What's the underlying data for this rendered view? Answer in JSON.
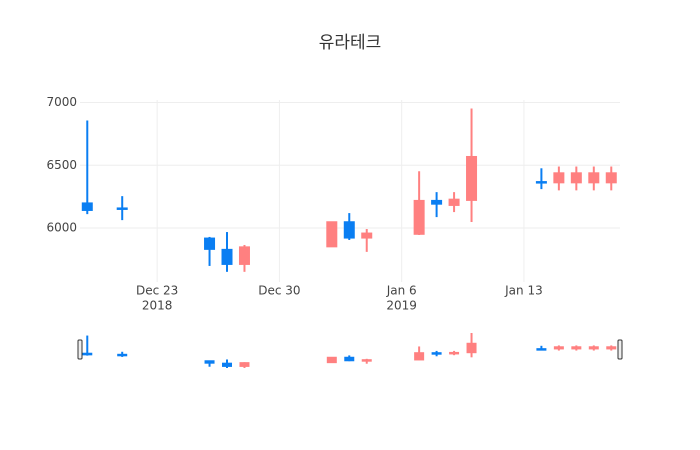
{
  "chart_data": {
    "type": "candlestick",
    "title": "유라테크",
    "x": [
      "2018-12-19",
      "2018-12-21",
      "2018-12-26",
      "2018-12-27",
      "2018-12-28",
      "2019-01-02",
      "2019-01-03",
      "2019-01-04",
      "2019-01-07",
      "2019-01-08",
      "2019-01-09",
      "2019-01-10",
      "2019-01-14",
      "2019-01-15",
      "2019-01-16",
      "2019-01-17",
      "2019-01-18"
    ],
    "open": [
      6200,
      6160,
      5920,
      5830,
      5710,
      5850,
      6050,
      5920,
      5950,
      6220,
      6180,
      6220,
      6370,
      6360,
      6360,
      6360,
      6360
    ],
    "high": [
      6857,
      6254,
      5929,
      5968,
      5865,
      6050,
      6119,
      5992,
      6452,
      6286,
      6286,
      6952,
      6476,
      6490,
      6490,
      6490,
      6490
    ],
    "low": [
      6111,
      6063,
      5698,
      5651,
      5651,
      5850,
      5905,
      5810,
      5944,
      6087,
      6127,
      6048,
      6310,
      6300,
      6300,
      6300,
      6300
    ],
    "close": [
      6140,
      6150,
      5830,
      5710,
      5850,
      6050,
      5920,
      5960,
      6220,
      6190,
      6230,
      6570,
      6360,
      6440,
      6440,
      6440,
      6440
    ],
    "increasing_color": "#ff8080",
    "decreasing_color": "#0a7ef2",
    "xlim": [
      "2018-12-18T14:00",
      "2019-01-18T12:00"
    ],
    "xticks": [
      {
        "value": "2018-12-23",
        "label": "Dec 23",
        "sublabel": "2018"
      },
      {
        "value": "2018-12-30",
        "label": "Dec 30"
      },
      {
        "value": "2019-01-06",
        "label": "Jan 6",
        "sublabel": "2019"
      },
      {
        "value": "2019-01-13",
        "label": "Jan 13"
      }
    ],
    "ylim": [
      5570,
      7020
    ],
    "yticks": [
      6000,
      6500,
      7000
    ],
    "grid": true,
    "rangeslider": true
  }
}
